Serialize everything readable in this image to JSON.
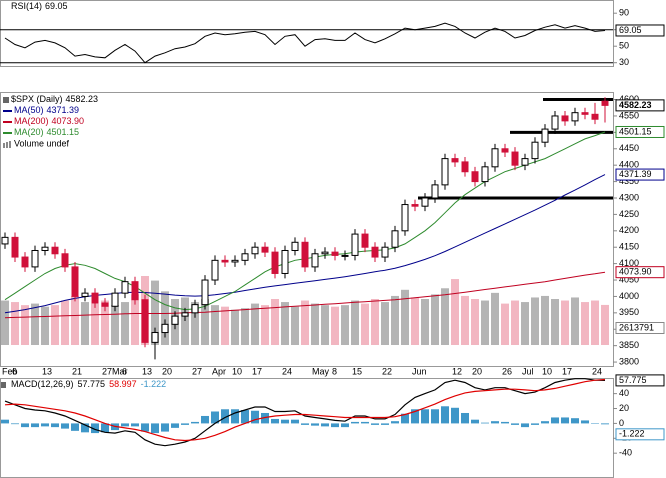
{
  "chart_data": [
    {
      "type": "line",
      "ylim": [
        26,
        106
      ],
      "yticks": [
        30,
        50,
        70,
        90
      ],
      "bands": [
        30,
        70
      ],
      "band_color": "#000000",
      "series": [
        {
          "name": "RSI(14)",
          "color": "#000000",
          "values": [
            60,
            52,
            48,
            55,
            57,
            54,
            48,
            38,
            40,
            37,
            36,
            45,
            52,
            44,
            30,
            38,
            42,
            47,
            49,
            53,
            62,
            66,
            64,
            65,
            67,
            68,
            64,
            52,
            62,
            64,
            50,
            58,
            59,
            57,
            57,
            66,
            58,
            54,
            59,
            65,
            72,
            70,
            72,
            74,
            78,
            74,
            66,
            60,
            67,
            72,
            68,
            60,
            63,
            69,
            73,
            76,
            72,
            75,
            72,
            68,
            69.05
          ]
        }
      ]
    },
    {
      "type": "candlestick",
      "title": "$SPX (Daily)",
      "categories": [
        "Feb",
        "6",
        null,
        null,
        "13",
        null,
        null,
        "21",
        null,
        null,
        "27",
        "Mar",
        "6",
        null,
        "13",
        null,
        "20",
        null,
        null,
        "27",
        null,
        "Apr",
        null,
        "10",
        null,
        "17",
        null,
        null,
        "24",
        null,
        null,
        "May",
        null,
        "8",
        null,
        "15",
        null,
        null,
        "22",
        null,
        null,
        "Jun",
        null,
        null,
        null,
        "12",
        null,
        "20",
        null,
        null,
        "26",
        null,
        "Jul",
        null,
        "10",
        null,
        "17",
        null,
        null,
        "24",
        null
      ],
      "open": [
        4160,
        4180,
        4120,
        4090,
        4140,
        4150,
        4130,
        4090,
        4000,
        4010,
        3980,
        3970,
        4010,
        4045,
        3990,
        3860,
        3890,
        3915,
        3940,
        3950,
        3975,
        4050,
        4110,
        4105,
        4110,
        4130,
        4150,
        4135,
        4070,
        4140,
        4165,
        4090,
        4130,
        4135,
        4125,
        4125,
        4190,
        4150,
        4120,
        4150,
        4200,
        4280,
        4275,
        4300,
        4340,
        4420,
        4410,
        4380,
        4350,
        4395,
        4450,
        4440,
        4400,
        4420,
        4470,
        4510,
        4550,
        4535,
        4560,
        4555,
        4595
      ],
      "high": [
        4195,
        4195,
        4135,
        4155,
        4165,
        4165,
        4145,
        4105,
        4025,
        4025,
        3995,
        4025,
        4060,
        4060,
        4005,
        3905,
        3930,
        3955,
        3965,
        3990,
        4065,
        4125,
        4125,
        4125,
        4145,
        4165,
        4165,
        4150,
        4155,
        4180,
        4180,
        4145,
        4150,
        4150,
        4140,
        4205,
        4205,
        4165,
        4165,
        4215,
        4295,
        4295,
        4315,
        4355,
        4435,
        4435,
        4425,
        4395,
        4410,
        4465,
        4465,
        4455,
        4435,
        4485,
        4525,
        4565,
        4565,
        4575,
        4575,
        4590,
        4607
      ],
      "low": [
        4145,
        4105,
        4075,
        4075,
        4125,
        4115,
        4075,
        3985,
        3985,
        3965,
        3955,
        3955,
        3995,
        3975,
        3845,
        3808,
        3875,
        3900,
        3925,
        3935,
        3960,
        4035,
        4090,
        4090,
        4095,
        4115,
        4120,
        4055,
        4055,
        4125,
        4075,
        4075,
        4115,
        4110,
        4110,
        4110,
        4135,
        4105,
        4105,
        4135,
        4185,
        4260,
        4260,
        4285,
        4325,
        4395,
        4365,
        4335,
        4335,
        4380,
        4425,
        4385,
        4385,
        4405,
        4455,
        4495,
        4520,
        4520,
        4540,
        4525,
        4530
      ],
      "close": [
        4180,
        4120,
        4090,
        4140,
        4150,
        4130,
        4090,
        4000,
        4010,
        3980,
        3970,
        4010,
        4045,
        3990,
        3860,
        3890,
        3915,
        3940,
        3950,
        3975,
        4050,
        4110,
        4105,
        4110,
        4130,
        4150,
        4135,
        4070,
        4140,
        4165,
        4090,
        4130,
        4135,
        4125,
        4125,
        4190,
        4150,
        4120,
        4150,
        4200,
        4280,
        4275,
        4300,
        4340,
        4420,
        4410,
        4380,
        4350,
        4395,
        4450,
        4440,
        4400,
        4420,
        4470,
        4510,
        4550,
        4535,
        4560,
        4555,
        4540,
        4582.23
      ],
      "up_color": "#000000",
      "down_color": "#d0103a",
      "ylim": [
        3788,
        4623
      ],
      "yticks": [
        3800,
        3850,
        3900,
        3950,
        4000,
        4050,
        4100,
        4150,
        4200,
        4250,
        4300,
        4350,
        4400,
        4450,
        4500,
        4550,
        4600
      ],
      "series": [
        {
          "name": "MA(50)",
          "color": "#00008b",
          "last_label": "4371.39",
          "values": [
            3950,
            3955,
            3960,
            3966,
            3972,
            3980,
            3988,
            3994,
            3999,
            4003,
            4006,
            4009,
            4012,
            4013,
            4012,
            4010,
            4007,
            4004,
            4002,
            4001,
            4002,
            4005,
            4009,
            4013,
            4018,
            4023,
            4028,
            4032,
            4036,
            4040,
            4044,
            4048,
            4052,
            4056,
            4060,
            4065,
            4070,
            4075,
            4080,
            4086,
            4094,
            4103,
            4113,
            4124,
            4137,
            4151,
            4165,
            4179,
            4193,
            4207,
            4221,
            4235,
            4249,
            4263,
            4278,
            4293,
            4309,
            4324,
            4340,
            4356,
            4371.39
          ]
        },
        {
          "name": "MA(200)",
          "color": "#c00020",
          "last_label": "4073.90",
          "values": [
            3935,
            3936,
            3937,
            3938,
            3939,
            3940,
            3941,
            3942,
            3943,
            3944,
            3945,
            3946,
            3947,
            3948,
            3948,
            3948,
            3948,
            3949,
            3950,
            3951,
            3952,
            3954,
            3956,
            3958,
            3960,
            3962,
            3964,
            3966,
            3968,
            3970,
            3972,
            3974,
            3976,
            3978,
            3980,
            3982,
            3984,
            3986,
            3988,
            3990,
            3993,
            3996,
            3999,
            4002,
            4005,
            4009,
            4013,
            4017,
            4021,
            4025,
            4029,
            4033,
            4037,
            4041,
            4045,
            4050,
            4055,
            4060,
            4065,
            4069,
            4073.9
          ]
        },
        {
          "name": "MA(20)",
          "color": "#2e8b2e",
          "last_label": "4501.15",
          "values": [
            3990,
            4010,
            4030,
            4050,
            4070,
            4085,
            4095,
            4100,
            4095,
            4085,
            4070,
            4055,
            4045,
            4030,
            4010,
            3990,
            3975,
            3965,
            3960,
            3962,
            3970,
            3985,
            4000,
            4015,
            4035,
            4055,
            4075,
            4090,
            4100,
            4110,
            4115,
            4120,
            4125,
            4128,
            4130,
            4135,
            4138,
            4140,
            4142,
            4148,
            4160,
            4180,
            4200,
            4225,
            4255,
            4285,
            4310,
            4330,
            4350,
            4365,
            4380,
            4390,
            4400,
            4410,
            4420,
            4435,
            4450,
            4465,
            4480,
            4490,
            4501.15
          ]
        }
      ],
      "volume": {
        "name": "Volume undef",
        "ylim": [
          0,
          6000000
        ],
        "up_color": "#b4b4b4",
        "down_color": "#f2b6c1",
        "values": [
          2900000,
          2800000,
          2600000,
          2700000,
          2500000,
          2600000,
          2900000,
          3200000,
          2800000,
          2700000,
          2900000,
          2600000,
          2800000,
          3300000,
          4500000,
          4200000,
          3500000,
          3000000,
          3100000,
          2800000,
          3000000,
          2600000,
          2500000,
          2300000,
          2400000,
          2700000,
          2600000,
          3000000,
          2800000,
          2500000,
          2900000,
          2700000,
          2600000,
          2500000,
          2600000,
          2900000,
          2700000,
          3000000,
          2800000,
          3200000,
          3600000,
          3100000,
          3000000,
          3300000,
          3700000,
          4300000,
          3200000,
          3000000,
          2900000,
          3400000,
          2700000,
          2900000,
          2800000,
          3100000,
          3200000,
          3000000,
          2900000,
          3100000,
          2800000,
          2900000,
          2613791
        ]
      },
      "levels": [
        4600,
        4500,
        4300
      ],
      "level_color": "#000000"
    },
    {
      "type": "macd",
      "title": "MACD(12,26,9)",
      "ylim": [
        -72,
        61
      ],
      "yticks": [
        -40,
        -20,
        0,
        20,
        40
      ],
      "series": [
        {
          "color": "#000000",
          "values": [
            30,
            25,
            20,
            18,
            17,
            14,
            10,
            4,
            -2,
            -8,
            -12,
            -13,
            -10,
            -12,
            -22,
            -28,
            -30,
            -28,
            -25,
            -20,
            -10,
            0,
            8,
            14,
            18,
            22,
            22,
            16,
            16,
            17,
            10,
            8,
            6,
            4,
            3,
            10,
            10,
            6,
            6,
            12,
            25,
            35,
            40,
            45,
            55,
            58,
            55,
            48,
            45,
            48,
            48,
            44,
            40,
            42,
            48,
            55,
            58,
            60,
            60,
            58,
            57.775
          ]
        },
        {
          "color": "#e00000",
          "values": [
            25,
            26,
            25,
            23,
            21,
            19,
            17,
            14,
            10,
            5,
            0,
            -4,
            -6,
            -8,
            -11,
            -15,
            -19,
            -22,
            -23,
            -22,
            -20,
            -16,
            -11,
            -5,
            0,
            5,
            8,
            10,
            11,
            12,
            12,
            11,
            10,
            9,
            8,
            8,
            8,
            8,
            8,
            9,
            12,
            16,
            21,
            26,
            32,
            37,
            41,
            43,
            44,
            45,
            46,
            46,
            45,
            44,
            45,
            47,
            50,
            53,
            56,
            58,
            58.997
          ]
        },
        {
          "type": "bar",
          "color": "#3f97c8",
          "values": [
            5,
            -1,
            -5,
            -5,
            -4,
            -5,
            -7,
            -10,
            -12,
            -13,
            -12,
            -9,
            -4,
            -4,
            -11,
            -13,
            -11,
            -6,
            -2,
            2,
            10,
            16,
            19,
            19,
            18,
            17,
            14,
            6,
            5,
            5,
            -2,
            -3,
            -4,
            -5,
            -5,
            2,
            2,
            -2,
            -2,
            3,
            13,
            19,
            19,
            19,
            23,
            21,
            14,
            5,
            1,
            3,
            2,
            -2,
            -5,
            -2,
            3,
            8,
            8,
            7,
            4,
            0,
            -1.222
          ]
        }
      ]
    }
  ]
}
